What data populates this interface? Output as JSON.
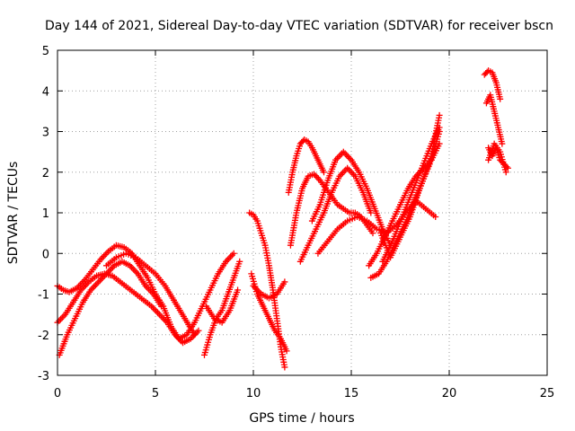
{
  "chart_data": {
    "type": "scatter",
    "title": "Day 144 of 2021, Sidereal Day-to-day VTEC variation (SDTVAR) for receiver bscn",
    "xlabel": "GPS time / hours",
    "ylabel": "SDTVAR / TECUs",
    "xlim": [
      0,
      25
    ],
    "ylim": [
      -3,
      5
    ],
    "xticks": [
      "0",
      "5",
      "10",
      "15",
      "20",
      "25"
    ],
    "yticks": [
      "-3",
      "-2",
      "-1",
      "0",
      "1",
      "2",
      "3",
      "4",
      "5"
    ],
    "grid": true,
    "marker": "+",
    "color": "#ff0000",
    "series": [
      {
        "x": [
          0.0,
          0.3,
          0.6,
          1.0,
          1.4,
          1.8,
          2.2,
          2.6,
          3.0,
          3.4,
          3.8,
          4.2,
          4.6,
          5.0,
          5.4,
          5.8,
          6.2,
          6.6,
          7.0,
          7.4,
          7.8,
          8.2,
          8.6,
          9.0
        ],
        "y": [
          -0.8,
          -0.9,
          -0.95,
          -0.85,
          -0.65,
          -0.4,
          -0.15,
          0.05,
          0.2,
          0.15,
          0.0,
          -0.3,
          -0.6,
          -1.0,
          -1.3,
          -1.8,
          -2.1,
          -2.0,
          -1.7,
          -1.3,
          -0.9,
          -0.5,
          -0.2,
          0.0
        ]
      },
      {
        "x": [
          0.0,
          0.4,
          0.8,
          1.2,
          1.6,
          2.0,
          2.4,
          2.8,
          3.2,
          3.6,
          4.0,
          4.4,
          4.8,
          5.2,
          5.6,
          6.0,
          6.4,
          6.8,
          7.2
        ],
        "y": [
          -1.7,
          -1.5,
          -1.2,
          -0.9,
          -0.7,
          -0.55,
          -0.5,
          -0.55,
          -0.7,
          -0.85,
          -1.0,
          -1.15,
          -1.3,
          -1.5,
          -1.7,
          -2.0,
          -2.2,
          -2.1,
          -1.9
        ]
      },
      {
        "x": [
          0.1,
          0.5,
          0.9,
          1.3,
          1.7,
          2.1,
          2.5,
          2.9,
          3.3,
          3.7,
          4.1,
          4.5,
          4.9,
          5.3
        ],
        "y": [
          -2.5,
          -2.0,
          -1.6,
          -1.2,
          -0.9,
          -0.7,
          -0.5,
          -0.3,
          -0.2,
          -0.3,
          -0.5,
          -0.8,
          -1.0,
          -1.3
        ]
      },
      {
        "x": [
          2.5,
          3.0,
          3.5,
          4.0,
          4.5,
          5.0,
          5.5,
          6.0,
          6.5,
          7.0
        ],
        "y": [
          -0.3,
          -0.1,
          0.0,
          -0.1,
          -0.3,
          -0.5,
          -0.8,
          -1.2,
          -1.6,
          -2.0
        ]
      },
      {
        "x": [
          7.5,
          7.8,
          8.1,
          8.4,
          8.7,
          9.0,
          9.3
        ],
        "y": [
          -2.5,
          -2.0,
          -1.6,
          -1.4,
          -1.0,
          -0.6,
          -0.2
        ]
      },
      {
        "x": [
          7.6,
          8.0,
          8.4,
          8.8,
          9.2
        ],
        "y": [
          -1.3,
          -1.6,
          -1.7,
          -1.4,
          -0.9
        ]
      },
      {
        "x": [
          9.8,
          10.0,
          10.2,
          10.4,
          10.6,
          10.8,
          11.0,
          11.2,
          11.4,
          11.6
        ],
        "y": [
          1.0,
          0.95,
          0.8,
          0.5,
          0.2,
          -0.3,
          -0.9,
          -1.6,
          -2.3,
          -2.8
        ]
      },
      {
        "x": [
          9.9,
          10.2,
          10.5,
          10.8,
          11.1,
          11.4,
          11.7
        ],
        "y": [
          -0.5,
          -1.0,
          -1.3,
          -1.6,
          -1.9,
          -2.1,
          -2.4
        ]
      },
      {
        "x": [
          10.0,
          10.4,
          10.8,
          11.2,
          11.6
        ],
        "y": [
          -0.8,
          -1.0,
          -1.1,
          -1.0,
          -0.7
        ]
      },
      {
        "x": [
          11.8,
          12.0,
          12.2,
          12.4,
          12.6,
          12.8,
          13.0,
          13.2,
          13.4,
          13.6
        ],
        "y": [
          1.5,
          2.0,
          2.4,
          2.7,
          2.8,
          2.75,
          2.6,
          2.4,
          2.2,
          2.0
        ]
      },
      {
        "x": [
          11.9,
          12.2,
          12.5,
          12.8,
          13.1,
          13.4,
          13.7,
          14.0,
          14.3,
          14.6,
          14.9,
          15.2,
          15.5,
          15.8,
          16.1
        ],
        "y": [
          0.2,
          1.0,
          1.6,
          1.9,
          1.95,
          1.8,
          1.6,
          1.4,
          1.2,
          1.1,
          1.0,
          1.0,
          0.9,
          0.7,
          0.5
        ]
      },
      {
        "x": [
          12.4,
          12.8,
          13.2,
          13.6,
          14.0,
          14.4,
          14.8,
          15.2,
          15.6,
          16.0
        ],
        "y": [
          -0.2,
          0.2,
          0.6,
          1.0,
          1.5,
          1.9,
          2.1,
          1.9,
          1.5,
          1.0
        ]
      },
      {
        "x": [
          13.0,
          13.4,
          13.8,
          14.2,
          14.6,
          15.0,
          15.4,
          15.8,
          16.2,
          16.6,
          17.0
        ],
        "y": [
          0.8,
          1.2,
          1.8,
          2.3,
          2.5,
          2.3,
          2.0,
          1.6,
          1.1,
          0.6,
          0.2
        ]
      },
      {
        "x": [
          13.3,
          13.8,
          14.3,
          14.8,
          15.3,
          15.8,
          16.3,
          16.8,
          17.3,
          17.8,
          18.3,
          18.8,
          19.3
        ],
        "y": [
          0.0,
          0.3,
          0.6,
          0.8,
          0.9,
          0.8,
          0.6,
          0.5,
          0.7,
          1.0,
          1.3,
          1.1,
          0.9
        ]
      },
      {
        "x": [
          15.9,
          16.3,
          16.7,
          17.1,
          17.5,
          17.9,
          18.3,
          18.7,
          19.1,
          19.5
        ],
        "y": [
          -0.3,
          0.0,
          0.4,
          0.8,
          1.2,
          1.6,
          1.9,
          2.1,
          2.3,
          2.7
        ]
      },
      {
        "x": [
          16.0,
          16.4,
          16.8,
          17.2,
          17.6,
          18.0,
          18.4,
          18.8,
          19.2,
          19.5
        ],
        "y": [
          -0.6,
          -0.5,
          -0.2,
          0.2,
          0.6,
          1.0,
          1.5,
          2.0,
          2.5,
          3.0
        ]
      },
      {
        "x": [
          16.5,
          17.0,
          17.5,
          18.0,
          18.5,
          19.0,
          19.5
        ],
        "y": [
          0.5,
          -0.1,
          0.4,
          0.9,
          1.6,
          2.2,
          3.4
        ]
      },
      {
        "x": [
          16.6,
          17.1,
          17.6,
          18.1,
          18.6,
          19.1,
          19.5
        ],
        "y": [
          -0.2,
          0.3,
          0.9,
          1.5,
          2.1,
          2.7,
          3.1
        ]
      },
      {
        "x": [
          21.8,
          22.0,
          22.2,
          22.4,
          22.6
        ],
        "y": [
          4.4,
          4.5,
          4.45,
          4.2,
          3.8
        ]
      },
      {
        "x": [
          21.9,
          22.1,
          22.3,
          22.5,
          22.7
        ],
        "y": [
          3.7,
          3.9,
          3.5,
          3.1,
          2.7
        ]
      },
      {
        "x": [
          22.0,
          22.2,
          22.4,
          22.6,
          22.8,
          23.0
        ],
        "y": [
          2.6,
          2.4,
          2.6,
          2.3,
          2.2,
          2.1
        ]
      },
      {
        "x": [
          22.0,
          22.3,
          22.6,
          22.9
        ],
        "y": [
          2.3,
          2.7,
          2.5,
          2.0
        ]
      }
    ]
  }
}
